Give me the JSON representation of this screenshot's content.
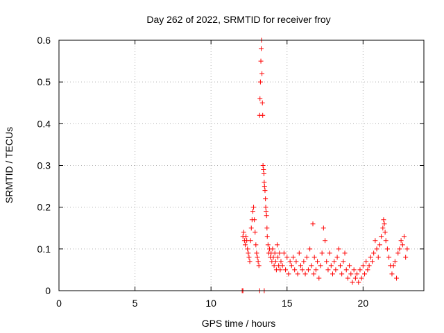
{
  "chart_data": {
    "type": "scatter",
    "title": "Day 262 of 2022, SRMTID for receiver froy",
    "xlabel": "GPS time / hours",
    "ylabel": "SRMTID / TECUs",
    "xlim": [
      0,
      24
    ],
    "ylim": [
      0,
      0.6
    ],
    "xticks": [
      0,
      5,
      10,
      15,
      20
    ],
    "xtick_labels": [
      "0",
      "5",
      "10",
      "15",
      "20"
    ],
    "yticks": [
      0,
      0.1,
      0.2,
      0.3,
      0.4,
      0.5,
      0.6
    ],
    "ytick_labels": [
      "0",
      "0.1",
      "0.2",
      "0.3",
      "0.4",
      "0.5",
      "0.6"
    ],
    "grid": true,
    "marker": "+",
    "color": "#ff0000",
    "series": [
      {
        "name": "froy",
        "points": [
          [
            12.05,
            0.0
          ],
          [
            12.1,
            0.0
          ],
          [
            13.2,
            0.0
          ],
          [
            13.5,
            0.0
          ],
          [
            12.1,
            0.13
          ],
          [
            12.15,
            0.14
          ],
          [
            12.2,
            0.12
          ],
          [
            12.25,
            0.11
          ],
          [
            12.3,
            0.13
          ],
          [
            12.35,
            0.12
          ],
          [
            12.4,
            0.1
          ],
          [
            12.45,
            0.09
          ],
          [
            12.5,
            0.08
          ],
          [
            12.55,
            0.07
          ],
          [
            12.6,
            0.12
          ],
          [
            12.65,
            0.15
          ],
          [
            12.7,
            0.17
          ],
          [
            12.75,
            0.19
          ],
          [
            12.8,
            0.2
          ],
          [
            12.85,
            0.17
          ],
          [
            12.9,
            0.14
          ],
          [
            12.95,
            0.11
          ],
          [
            13.0,
            0.09
          ],
          [
            13.05,
            0.08
          ],
          [
            13.1,
            0.07
          ],
          [
            13.15,
            0.06
          ],
          [
            13.2,
            0.42
          ],
          [
            13.22,
            0.46
          ],
          [
            13.25,
            0.5
          ],
          [
            13.28,
            0.55
          ],
          [
            13.3,
            0.58
          ],
          [
            13.32,
            0.6
          ],
          [
            13.35,
            0.52
          ],
          [
            13.38,
            0.45
          ],
          [
            13.4,
            0.42
          ],
          [
            13.42,
            0.3
          ],
          [
            13.45,
            0.29
          ],
          [
            13.48,
            0.28
          ],
          [
            13.5,
            0.26
          ],
          [
            13.52,
            0.25
          ],
          [
            13.55,
            0.24
          ],
          [
            13.58,
            0.22
          ],
          [
            13.6,
            0.2
          ],
          [
            13.62,
            0.19
          ],
          [
            13.65,
            0.18
          ],
          [
            13.68,
            0.15
          ],
          [
            13.7,
            0.13
          ],
          [
            13.75,
            0.11
          ],
          [
            13.8,
            0.09
          ],
          [
            13.85,
            0.1
          ],
          [
            13.9,
            0.08
          ],
          [
            13.95,
            0.09
          ],
          [
            14.0,
            0.07
          ],
          [
            14.05,
            0.1
          ],
          [
            14.1,
            0.08
          ],
          [
            14.15,
            0.06
          ],
          [
            14.2,
            0.09
          ],
          [
            14.25,
            0.07
          ],
          [
            14.3,
            0.05
          ],
          [
            14.35,
            0.11
          ],
          [
            14.4,
            0.08
          ],
          [
            14.45,
            0.06
          ],
          [
            14.5,
            0.09
          ],
          [
            14.55,
            0.05
          ],
          [
            14.6,
            0.07
          ],
          [
            14.7,
            0.06
          ],
          [
            14.8,
            0.09
          ],
          [
            14.9,
            0.05
          ],
          [
            15.0,
            0.08
          ],
          [
            15.1,
            0.04
          ],
          [
            15.2,
            0.07
          ],
          [
            15.3,
            0.06
          ],
          [
            15.4,
            0.08
          ],
          [
            15.5,
            0.05
          ],
          [
            15.6,
            0.07
          ],
          [
            15.7,
            0.04
          ],
          [
            15.8,
            0.09
          ],
          [
            15.9,
            0.06
          ],
          [
            16.0,
            0.05
          ],
          [
            16.1,
            0.07
          ],
          [
            16.2,
            0.04
          ],
          [
            16.3,
            0.08
          ],
          [
            16.4,
            0.05
          ],
          [
            16.5,
            0.1
          ],
          [
            16.6,
            0.06
          ],
          [
            16.7,
            0.16
          ],
          [
            16.75,
            0.04
          ],
          [
            16.8,
            0.08
          ],
          [
            16.9,
            0.05
          ],
          [
            17.0,
            0.07
          ],
          [
            17.1,
            0.03
          ],
          [
            17.2,
            0.06
          ],
          [
            17.3,
            0.09
          ],
          [
            17.4,
            0.15
          ],
          [
            17.5,
            0.12
          ],
          [
            17.6,
            0.07
          ],
          [
            17.7,
            0.05
          ],
          [
            17.8,
            0.09
          ],
          [
            17.9,
            0.06
          ],
          [
            18.0,
            0.04
          ],
          [
            18.1,
            0.07
          ],
          [
            18.2,
            0.05
          ],
          [
            18.3,
            0.08
          ],
          [
            18.4,
            0.1
          ],
          [
            18.5,
            0.06
          ],
          [
            18.6,
            0.04
          ],
          [
            18.7,
            0.07
          ],
          [
            18.8,
            0.09
          ],
          [
            18.9,
            0.05
          ],
          [
            19.0,
            0.03
          ],
          [
            19.1,
            0.06
          ],
          [
            19.2,
            0.04
          ],
          [
            19.3,
            0.02
          ],
          [
            19.4,
            0.05
          ],
          [
            19.5,
            0.03
          ],
          [
            19.6,
            0.04
          ],
          [
            19.7,
            0.02
          ],
          [
            19.8,
            0.05
          ],
          [
            19.9,
            0.03
          ],
          [
            20.0,
            0.06
          ],
          [
            20.1,
            0.04
          ],
          [
            20.2,
            0.07
          ],
          [
            20.3,
            0.05
          ],
          [
            20.4,
            0.06
          ],
          [
            20.5,
            0.08
          ],
          [
            20.6,
            0.07
          ],
          [
            20.7,
            0.09
          ],
          [
            20.8,
            0.12
          ],
          [
            20.9,
            0.1
          ],
          [
            21.0,
            0.08
          ],
          [
            21.1,
            0.11
          ],
          [
            21.2,
            0.13
          ],
          [
            21.3,
            0.15
          ],
          [
            21.35,
            0.17
          ],
          [
            21.4,
            0.16
          ],
          [
            21.45,
            0.14
          ],
          [
            21.5,
            0.12
          ],
          [
            21.6,
            0.1
          ],
          [
            21.7,
            0.08
          ],
          [
            21.8,
            0.06
          ],
          [
            21.9,
            0.04
          ],
          [
            22.0,
            0.06
          ],
          [
            22.1,
            0.07
          ],
          [
            22.2,
            0.03
          ],
          [
            22.3,
            0.09
          ],
          [
            22.4,
            0.1
          ],
          [
            22.5,
            0.12
          ],
          [
            22.6,
            0.11
          ],
          [
            22.7,
            0.13
          ],
          [
            22.8,
            0.08
          ],
          [
            22.9,
            0.1
          ]
        ]
      }
    ]
  }
}
